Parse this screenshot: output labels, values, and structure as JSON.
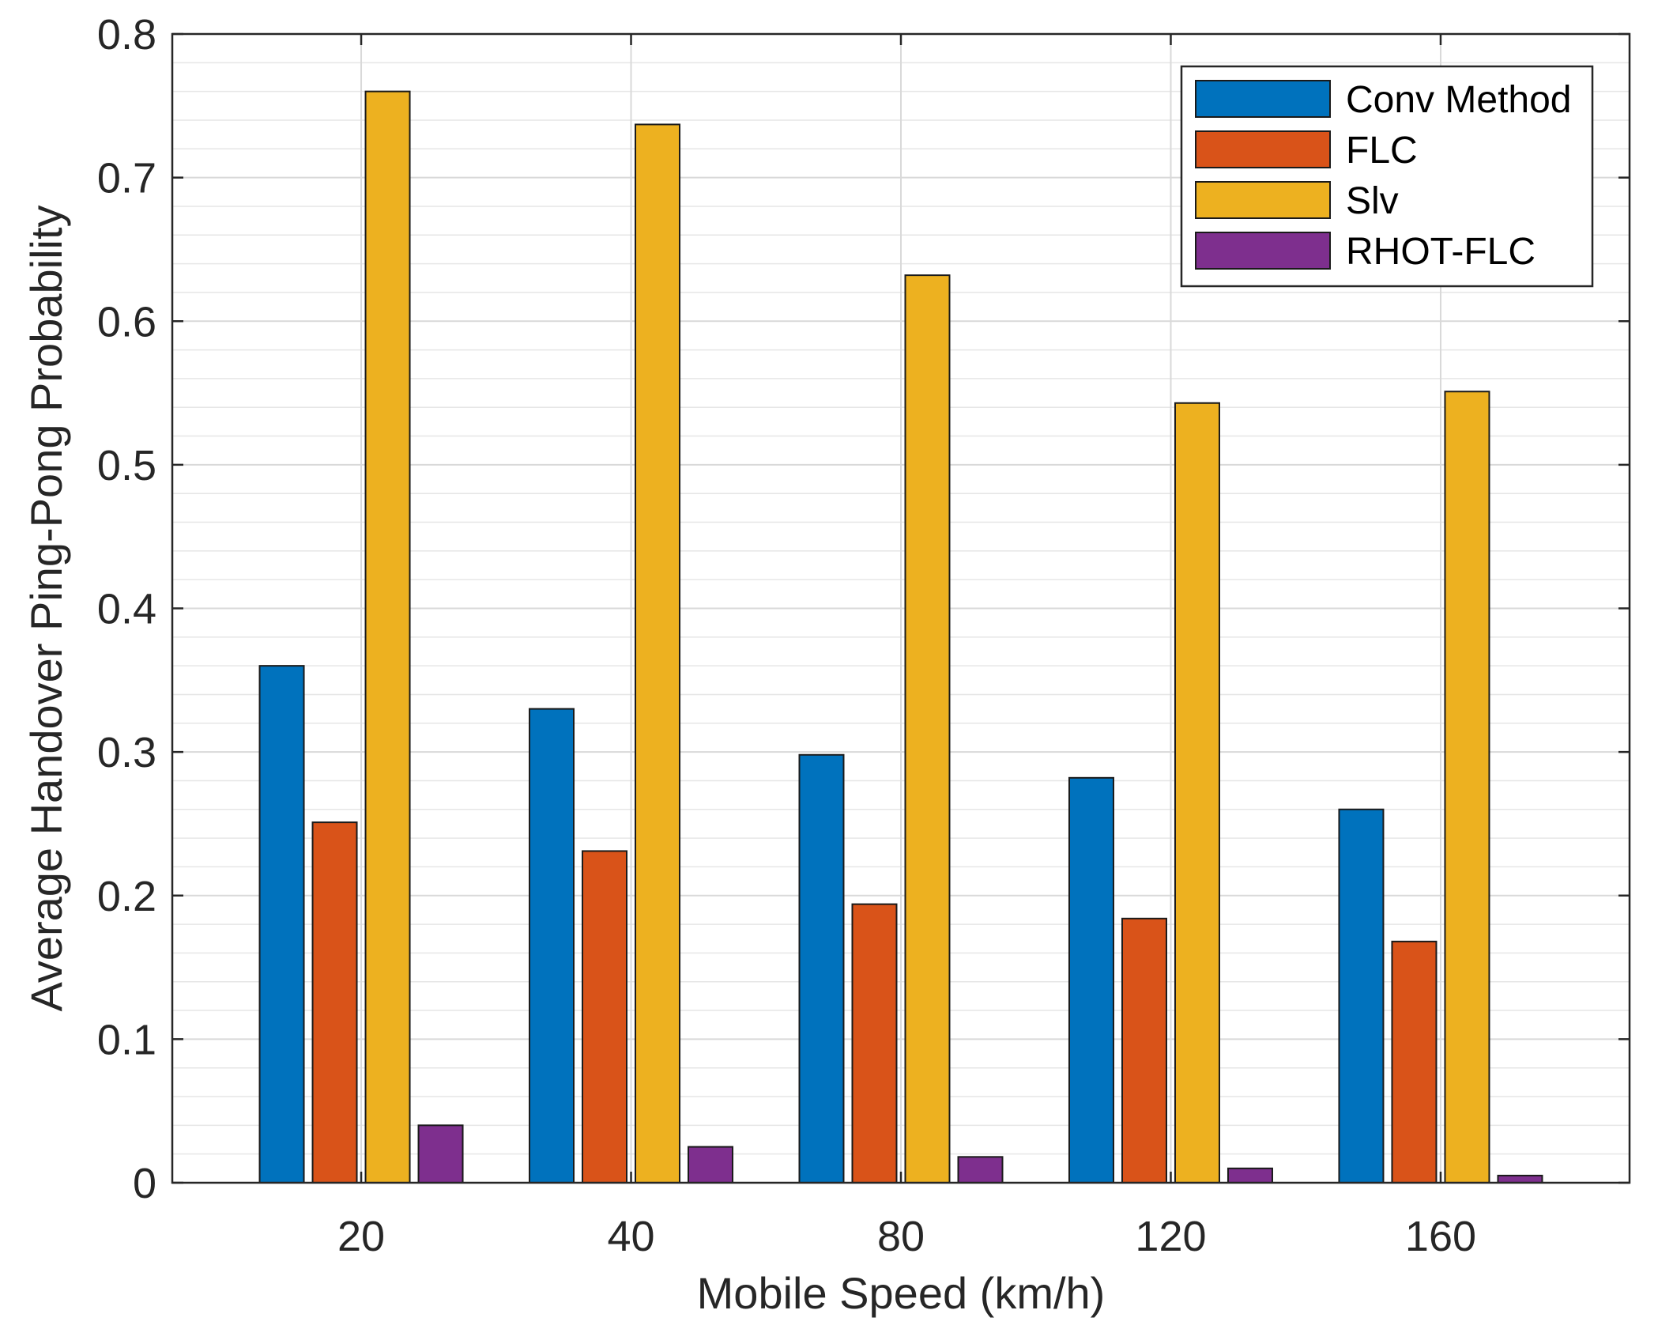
{
  "chart_data": {
    "type": "bar",
    "title": "",
    "xlabel": "Mobile Speed (km/h)",
    "ylabel": "Average Handover Ping-Pong Probability",
    "categories": [
      "20",
      "40",
      "80",
      "120",
      "160"
    ],
    "ylim": [
      0,
      0.8
    ],
    "yticks": [
      0,
      0.1,
      0.2,
      0.3,
      0.4,
      0.5,
      0.6,
      0.7,
      0.8
    ],
    "ytick_labels": [
      "0",
      "0.1",
      "0.2",
      "0.3",
      "0.4",
      "0.5",
      "0.6",
      "0.7",
      "0.8"
    ],
    "minor_ytick_step": 0.02,
    "grid": true,
    "legend_position": "top-right",
    "series": [
      {
        "name": "Conv Method",
        "color": "#0072BD",
        "values": [
          0.36,
          0.33,
          0.298,
          0.282,
          0.26
        ]
      },
      {
        "name": "FLC",
        "color": "#D95319",
        "values": [
          0.251,
          0.231,
          0.194,
          0.184,
          0.168
        ]
      },
      {
        "name": "Slv",
        "color": "#EDB120",
        "values": [
          0.76,
          0.737,
          0.632,
          0.543,
          0.551
        ]
      },
      {
        "name": "RHOT-FLC",
        "color": "#7E2F8E",
        "values": [
          0.04,
          0.025,
          0.018,
          0.01,
          0.005
        ]
      }
    ]
  }
}
